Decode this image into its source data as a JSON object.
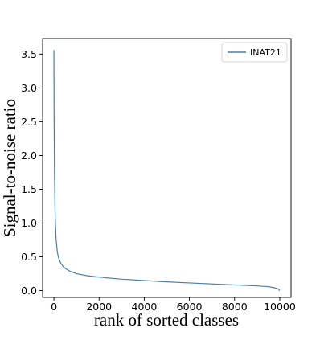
{
  "chart_data": {
    "type": "line",
    "xlabel": "rank of sorted classes",
    "ylabel": "Signal-to-noise ratio",
    "xlim": [
      -500,
      10500
    ],
    "ylim": [
      -0.1,
      3.73
    ],
    "x_ticks": [
      0,
      2000,
      4000,
      6000,
      8000,
      10000
    ],
    "y_ticks": [
      0.0,
      0.5,
      1.0,
      1.5,
      2.0,
      2.5,
      3.0,
      3.5
    ],
    "x_tick_labels": [
      "0",
      "2000",
      "4000",
      "6000",
      "8000",
      "10000"
    ],
    "y_tick_labels": [
      "0.0",
      "0.5",
      "1.0",
      "1.5",
      "2.0",
      "2.5",
      "3.0",
      "3.5"
    ],
    "grid": false,
    "legend_position": "top-right",
    "line_color": "#4c7fa8",
    "series": [
      {
        "name": "INAT21",
        "x": [
          0,
          5,
          10,
          20,
          30,
          50,
          75,
          100,
          150,
          200,
          300,
          400,
          500,
          700,
          1000,
          1500,
          2000,
          3000,
          4000,
          5000,
          6000,
          7000,
          8000,
          9000,
          9500,
          9800,
          9950,
          10000
        ],
        "y": [
          3.56,
          3.0,
          2.5,
          2.0,
          1.65,
          1.2,
          0.92,
          0.75,
          0.58,
          0.49,
          0.41,
          0.36,
          0.33,
          0.29,
          0.25,
          0.22,
          0.2,
          0.17,
          0.15,
          0.13,
          0.115,
          0.1,
          0.085,
          0.07,
          0.06,
          0.04,
          0.02,
          0.0
        ]
      }
    ]
  }
}
